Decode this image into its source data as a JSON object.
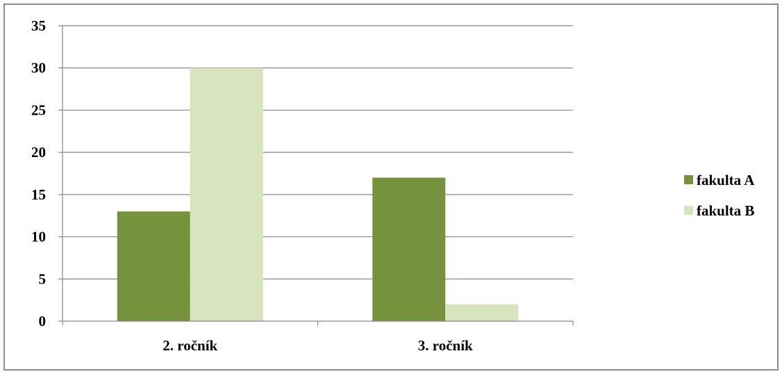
{
  "chart_data": {
    "type": "bar",
    "categories": [
      "2. ročník",
      "3. ročník"
    ],
    "series": [
      {
        "name": "fakulta A",
        "values": [
          13,
          17
        ],
        "color": "#76923c"
      },
      {
        "name": "fakulta B",
        "values": [
          30,
          2
        ],
        "color": "#d7e4bd"
      }
    ],
    "ylim": [
      0,
      35
    ],
    "yticks": [
      0,
      5,
      10,
      15,
      20,
      25,
      30,
      35
    ],
    "grid": true,
    "legend": "right",
    "title": "",
    "xlabel": "",
    "ylabel": ""
  }
}
